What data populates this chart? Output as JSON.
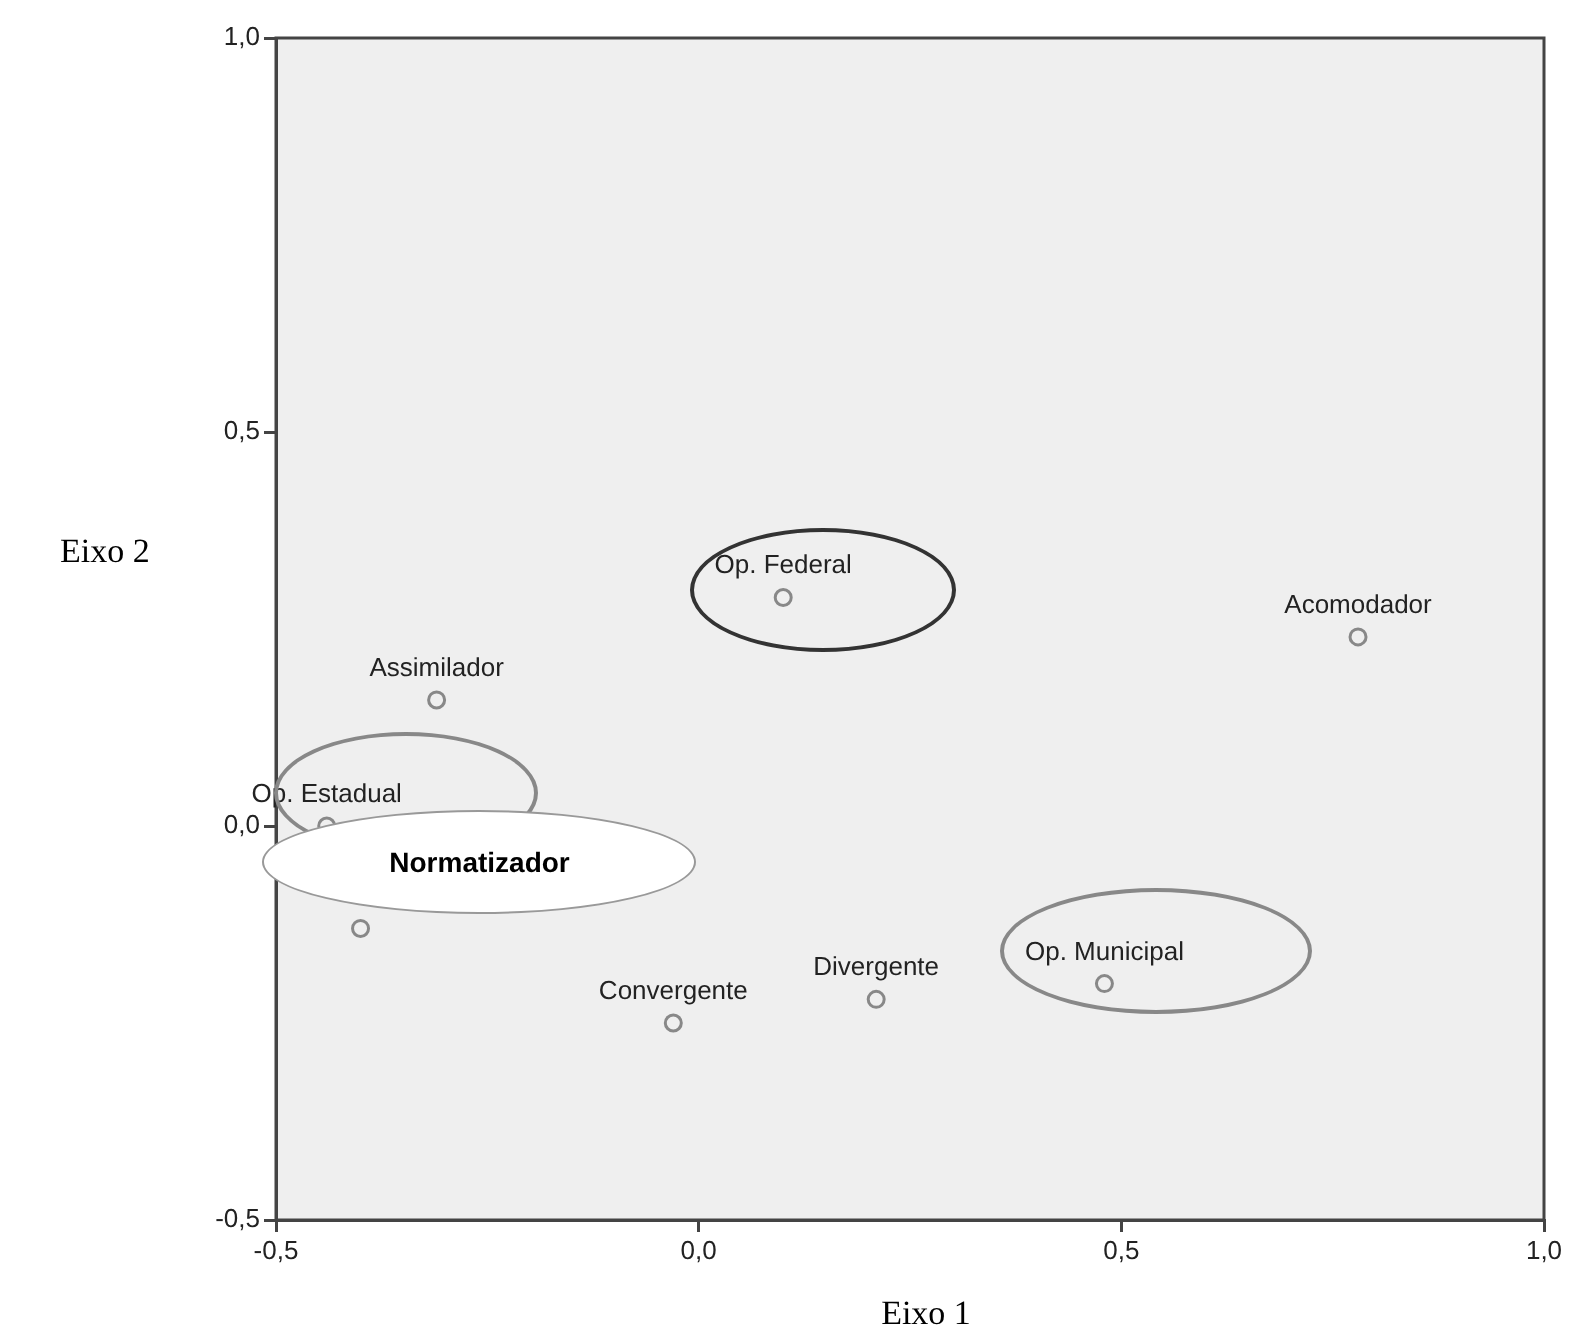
{
  "chart_data": {
    "type": "scatter",
    "xlabel": "Eixo 1",
    "ylabel": "Eixo 2",
    "series": [
      {
        "color": "#888888",
        "x": [
          0.1,
          -0.31,
          -0.44,
          -0.4,
          -0.03,
          0.21,
          0.48,
          0.78
        ],
        "values": [
          0.29,
          0.16,
          0.0,
          -0.13,
          -0.25,
          -0.22,
          -0.2,
          0.24
        ]
      }
    ],
    "marker": "circle",
    "xlim": [
      -0.5,
      1.0
    ],
    "ylim": [
      -0.5,
      1.0
    ],
    "xticks": [
      {
        "value": -0.5,
        "label": "-0,5"
      },
      {
        "value": 0,
        "label": "0,0"
      },
      {
        "value": 0.5,
        "label": "0,5"
      },
      {
        "value": 1.0,
        "label": "1,0"
      }
    ],
    "yticks": [
      {
        "value": -0.5,
        "label": "-0,5"
      },
      {
        "value": 0,
        "label": "0,0"
      },
      {
        "value": 0.5,
        "label": "0,5"
      },
      {
        "value": 1.0,
        "label": "1,0"
      }
    ],
    "grid": false,
    "legend": false,
    "annotations": [
      {
        "text": "Op. Federal",
        "x": 0.1,
        "y": 0.29
      },
      {
        "text": "Assimilador",
        "x": -0.31,
        "y": 0.16
      },
      {
        "text": "Op. Estadual",
        "x": -0.44,
        "y": 0.0
      },
      {
        "text": "Normatizador",
        "x": -0.4,
        "y": -0.13
      },
      {
        "text": "Convergente",
        "x": -0.03,
        "y": -0.25
      },
      {
        "text": "Divergente",
        "x": 0.21,
        "y": -0.22
      },
      {
        "text": "Op. Municipal",
        "x": 0.48,
        "y": -0.2
      },
      {
        "text": "Acomodador",
        "x": 0.78,
        "y": 0.24
      }
    ]
  }
}
